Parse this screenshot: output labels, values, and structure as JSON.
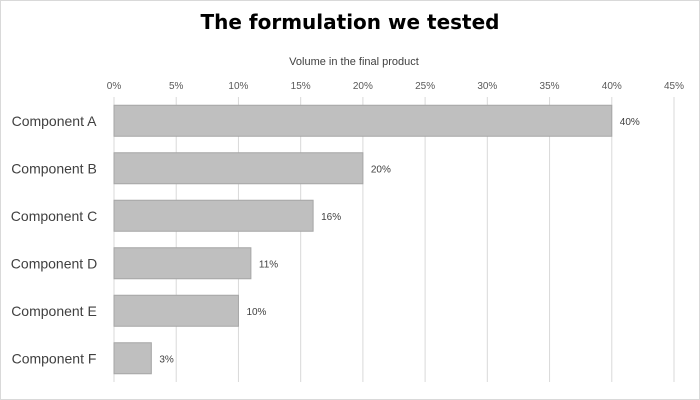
{
  "chart_data": {
    "type": "bar",
    "orientation": "horizontal",
    "title": "The formulation we tested",
    "xlabel": "Volume in the final product",
    "ylabel": "",
    "xaxis_position": "top",
    "categories": [
      "Component A",
      "Component B",
      "Component C",
      "Component D",
      "Component E",
      "Component F"
    ],
    "values": [
      40,
      20,
      16,
      11,
      10,
      3
    ],
    "value_unit": "%",
    "data_labels": [
      "40%",
      "20%",
      "16%",
      "11%",
      "10%",
      "3%"
    ],
    "xlim": [
      0,
      45
    ],
    "xticks": [
      0,
      5,
      10,
      15,
      20,
      25,
      30,
      35,
      40,
      45
    ],
    "xtick_labels": [
      "0%",
      "5%",
      "10%",
      "15%",
      "20%",
      "25%",
      "30%",
      "35%",
      "40%",
      "45%"
    ],
    "grid": true,
    "legend": "none",
    "colors": {
      "bar": "#bfbfbf",
      "bar_stroke": "#a6a6a6",
      "grid": "#d9d9d9"
    }
  }
}
